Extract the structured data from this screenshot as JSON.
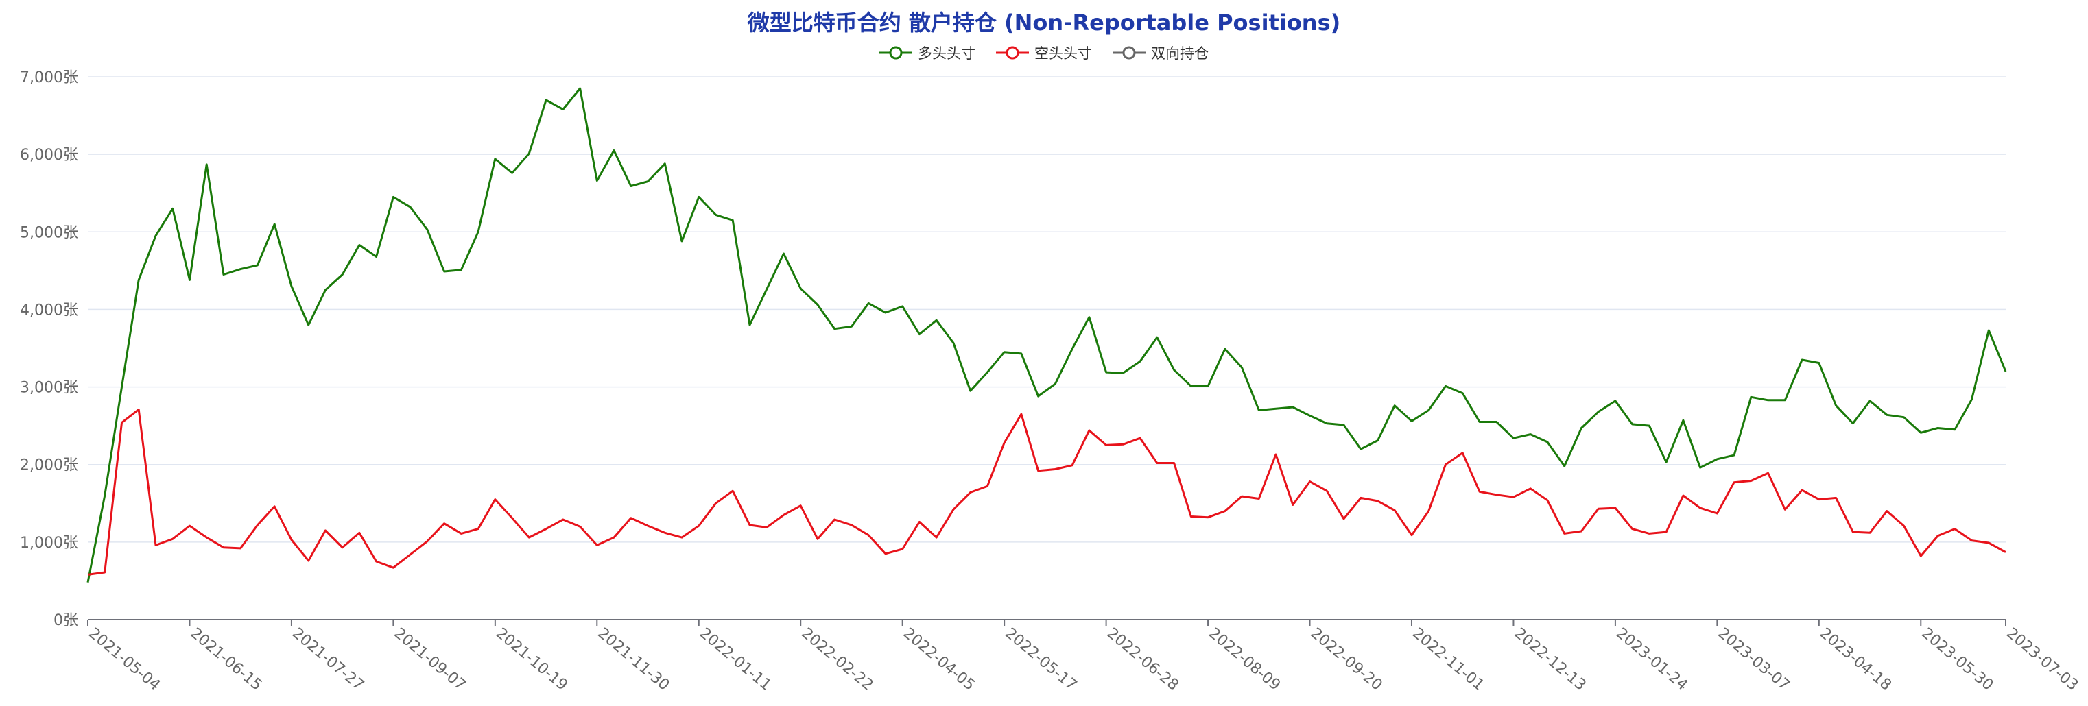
{
  "chart_data": {
    "type": "line",
    "title": "微型比特币合约 散户持仓 (Non-Reportable Positions)",
    "ylim": [
      0,
      7000
    ],
    "y_ticks": [
      "0张",
      "1,000张",
      "2,000张",
      "3,000张",
      "4,000张",
      "5,000张",
      "6,000张",
      "7,000张"
    ],
    "y_tick_values": [
      0,
      1000,
      2000,
      3000,
      4000,
      5000,
      6000,
      7000
    ],
    "x_tick_labels": [
      "2021-05-04",
      "2021-06-15",
      "2021-07-27",
      "2021-09-07",
      "2021-10-19",
      "2021-11-30",
      "2022-01-11",
      "2022-02-22",
      "2022-04-05",
      "2022-05-17",
      "2022-06-28",
      "2022-08-09",
      "2022-09-20",
      "2022-11-01",
      "2022-12-13",
      "2023-01-24",
      "2023-03-07",
      "2023-04-18",
      "2023-05-30",
      "2023-07-03"
    ],
    "x_tick_indices": [
      0,
      6,
      12,
      18,
      24,
      30,
      36,
      42,
      48,
      54,
      60,
      66,
      72,
      78,
      84,
      90,
      96,
      102,
      108,
      113
    ],
    "grid": true,
    "legend_position": "top-center",
    "series": [
      {
        "name": "多头头寸",
        "color": "#1a7a0a",
        "values": [
          480,
          1600,
          3000,
          4380,
          4950,
          5300,
          4380,
          5870,
          4450,
          4520,
          4570,
          5100,
          4300,
          3800,
          4250,
          4450,
          4830,
          4680,
          5450,
          5320,
          5030,
          4490,
          4510,
          5000,
          5940,
          5760,
          6010,
          6700,
          6580,
          6850,
          5660,
          6050,
          5590,
          5650,
          5880,
          4880,
          5450,
          5220,
          5150,
          3800,
          4260,
          4720,
          4270,
          4060,
          3750,
          3780,
          4080,
          3960,
          4040,
          3680,
          3860,
          3570,
          2950,
          3190,
          3450,
          3430,
          2880,
          3040,
          3490,
          3900,
          3190,
          3180,
          3330,
          3640,
          3220,
          3010,
          3010,
          3490,
          3250,
          2700,
          2720,
          2740,
          2630,
          2530,
          2510,
          2200,
          2310,
          2760,
          2560,
          2700,
          3010,
          2920,
          2550,
          2550,
          2340,
          2390,
          2290,
          1980,
          2470,
          2680,
          2820,
          2520,
          2500,
          2030,
          2570,
          1960,
          2070,
          2120,
          2870,
          2830,
          2830,
          3350,
          3310,
          2760,
          2530,
          2820,
          2640,
          2610,
          2410,
          2470,
          2450,
          2840,
          3730,
          3200
        ]
      },
      {
        "name": "空头头寸",
        "color": "#e8131b",
        "values": [
          580,
          610,
          2540,
          2710,
          960,
          1040,
          1210,
          1060,
          930,
          920,
          1220,
          1460,
          1030,
          760,
          1150,
          930,
          1120,
          750,
          670,
          840,
          1010,
          1240,
          1110,
          1170,
          1550,
          1310,
          1060,
          1170,
          1290,
          1200,
          960,
          1060,
          1310,
          1210,
          1120,
          1060,
          1210,
          1500,
          1660,
          1220,
          1190,
          1350,
          1470,
          1040,
          1290,
          1220,
          1090,
          850,
          910,
          1260,
          1060,
          1420,
          1640,
          1720,
          2280,
          2650,
          1920,
          1940,
          1990,
          2440,
          2250,
          2260,
          2340,
          2020,
          2020,
          1330,
          1320,
          1400,
          1590,
          1560,
          2130,
          1480,
          1780,
          1660,
          1300,
          1570,
          1530,
          1410,
          1090,
          1400,
          2000,
          2150,
          1650,
          1610,
          1580,
          1690,
          1540,
          1110,
          1140,
          1430,
          1440,
          1170,
          1110,
          1130,
          1600,
          1440,
          1370,
          1770,
          1790,
          1890,
          1420,
          1670,
          1550,
          1570,
          1130,
          1120,
          1400,
          1210,
          820,
          1080,
          1170,
          1020,
          990,
          870
        ]
      },
      {
        "name": "双向持仓",
        "color": "#666666",
        "values": []
      }
    ]
  }
}
